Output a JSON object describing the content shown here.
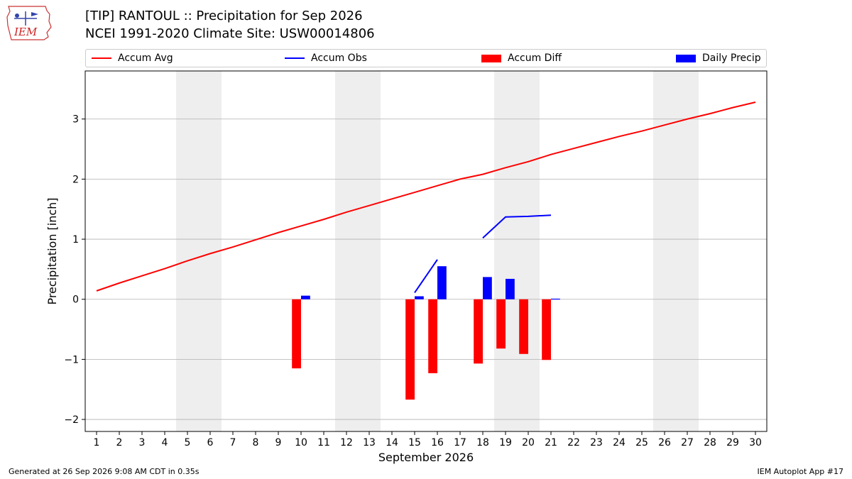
{
  "header": {
    "logo_text": "IEM",
    "title_line1": "[TIP] RANTOUL :: Precipitation for Sep 2026",
    "title_line2": "NCEI 1991-2020 Climate Site: USW00014806"
  },
  "footer": {
    "left": "Generated at 26 Sep 2026 9:08 AM CDT in 0.35s",
    "right": "IEM Autoplot App #17"
  },
  "colors": {
    "accum_avg": "#ff0000",
    "accum_obs": "#0000ff",
    "accum_diff": "#ff0000",
    "daily_precip": "#0000ff",
    "weekend_shade": "#eeeeee",
    "grid": "#b0b0b0"
  },
  "chart_data": {
    "type": "bar",
    "xlabel": "September 2026",
    "ylabel": "Precipitation [inch]",
    "xlim": [
      0.5,
      30.5
    ],
    "ylim": [
      -2.2,
      3.8
    ],
    "x_ticks": [
      1,
      2,
      3,
      4,
      5,
      6,
      7,
      8,
      9,
      10,
      11,
      12,
      13,
      14,
      15,
      16,
      17,
      18,
      19,
      20,
      21,
      22,
      23,
      24,
      25,
      26,
      27,
      28,
      29,
      30
    ],
    "y_ticks": [
      -2,
      -1,
      0,
      1,
      2,
      3
    ],
    "y_tick_labels": [
      "−2",
      "−1",
      "0",
      "1",
      "2",
      "3"
    ],
    "grid": "horizontal",
    "legend_position": "top",
    "weekend_shading": [
      [
        5,
        6
      ],
      [
        12,
        13
      ],
      [
        19,
        20
      ],
      [
        26,
        27
      ]
    ],
    "series": [
      {
        "name": "Accum Avg",
        "kind": "line",
        "x": [
          1,
          2,
          3,
          4,
          5,
          6,
          7,
          8,
          9,
          10,
          11,
          12,
          13,
          14,
          15,
          16,
          17,
          18,
          19,
          20,
          21,
          22,
          23,
          24,
          25,
          26,
          27,
          28,
          29,
          30
        ],
        "values": [
          0.14,
          0.27,
          0.39,
          0.51,
          0.64,
          0.76,
          0.87,
          0.99,
          1.11,
          1.22,
          1.33,
          1.45,
          1.56,
          1.67,
          1.78,
          1.89,
          2.0,
          2.08,
          2.19,
          2.29,
          2.41,
          2.51,
          2.61,
          2.71,
          2.8,
          2.9,
          3.0,
          3.09,
          3.19,
          3.28
        ]
      },
      {
        "name": "Accum Obs",
        "kind": "line",
        "segments": [
          {
            "x": [
              15,
              16
            ],
            "values": [
              0.11,
              0.66
            ]
          },
          {
            "x": [
              18,
              19,
              20,
              21
            ],
            "values": [
              1.02,
              1.37,
              1.38,
              1.4
            ]
          }
        ]
      },
      {
        "name": "Accum Diff",
        "kind": "bar",
        "x": [
          10,
          15,
          16,
          18,
          19,
          20,
          21
        ],
        "values": [
          -1.15,
          -1.67,
          -1.23,
          -1.07,
          -0.82,
          -0.91,
          -1.01
        ]
      },
      {
        "name": "Daily Precip",
        "kind": "bar",
        "x": [
          10,
          15,
          16,
          18,
          19,
          21
        ],
        "values": [
          0.06,
          0.05,
          0.55,
          0.37,
          0.34,
          0.01
        ]
      }
    ]
  }
}
